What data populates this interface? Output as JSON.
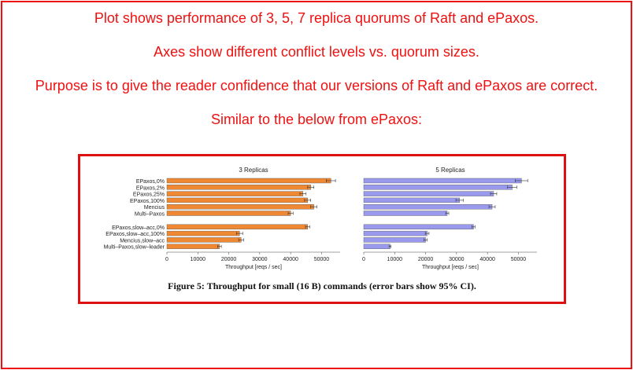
{
  "notes": [
    "Plot shows performance of 3, 5, 7 replica quorums of Raft and ePaxos.",
    "Axes show different conflict levels vs. quorum sizes.",
    "Purpose is to give the reader confidence that our versions of Raft and ePaxos are correct.",
    "Similar to the below from ePaxos:"
  ],
  "colors": {
    "border": "#ee1111",
    "text": "#ee1111",
    "panel1_bar": "#ee8833",
    "panel2_bar": "#9999ee"
  },
  "chart_data": {
    "type": "bar",
    "orientation": "horizontal",
    "caption": "Figure 5: Throughput for small (16 B) commands (error bars show 95% CI).",
    "categories": [
      "EPaxos,0%",
      "EPaxos,2%",
      "EPaxos,25%",
      "EPaxos,100%",
      "Mencius",
      "Multi–Paxos",
      "EPaxos,slow–acc,0%",
      "EPaxos,slow–acc,100%",
      "Mencius,slow–acc",
      "Multi–Paxos,slow–leader"
    ],
    "group_gap_after_index": 5,
    "xlabel": "Throughput [reqs / sec]",
    "xlim": [
      0,
      56000
    ],
    "xticks": [
      0,
      10000,
      20000,
      30000,
      40000,
      50000
    ],
    "panels": [
      {
        "title": "3 Replicas",
        "color": "#ee8833",
        "values": [
          53000,
          46500,
          44000,
          45500,
          47500,
          40000,
          45500,
          23500,
          24000,
          17000
        ],
        "error": [
          1500,
          1000,
          1000,
          1000,
          1000,
          800,
          700,
          1000,
          800,
          600
        ]
      },
      {
        "title": "5 Replicas",
        "color": "#9999ee",
        "values": [
          51000,
          48000,
          42000,
          31000,
          41500,
          27000,
          35500,
          20500,
          20000,
          8500
        ],
        "error": [
          2000,
          1500,
          1000,
          1200,
          1000,
          500,
          500,
          600,
          500,
          300
        ]
      }
    ]
  }
}
